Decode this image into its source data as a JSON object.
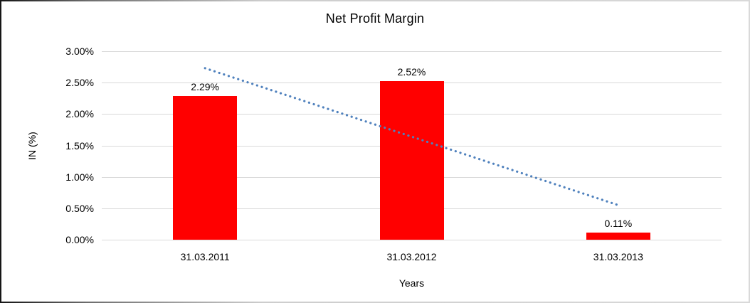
{
  "chart_data": {
    "type": "bar",
    "title": "Net Profit Margin",
    "xlabel": "Years",
    "ylabel": "IN (%)",
    "categories": [
      "31.03.2011",
      "31.03.2012",
      "31.03.2013"
    ],
    "values": [
      2.29,
      2.52,
      0.11
    ],
    "data_labels": [
      "2.29%",
      "2.52%",
      "0.11%"
    ],
    "yticks": [
      {
        "value": 0.0,
        "label": "0.00%"
      },
      {
        "value": 0.5,
        "label": "0.50%"
      },
      {
        "value": 1.0,
        "label": "1.00%"
      },
      {
        "value": 1.5,
        "label": "1.50%"
      },
      {
        "value": 2.0,
        "label": "2.00%"
      },
      {
        "value": 2.5,
        "label": "2.50%"
      },
      {
        "value": 3.0,
        "label": "3.00%"
      }
    ],
    "ylim": [
      0,
      3
    ],
    "grid": true,
    "legend": "none",
    "bar_color": "#ff0000",
    "trendline": {
      "type": "linear",
      "style": "dotted",
      "color": "#4f81bd",
      "start_value": 2.73,
      "end_value": 0.55
    }
  }
}
